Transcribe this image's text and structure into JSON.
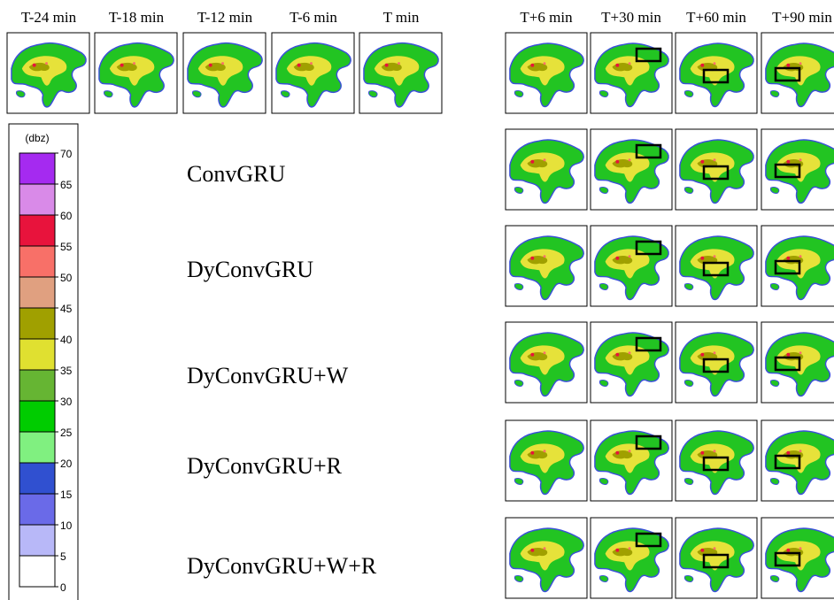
{
  "input_labels": [
    "T-24 min",
    "T-18 min",
    "T-12 min",
    "T-6 min",
    "T min"
  ],
  "output_labels": [
    "T+6 min",
    "T+30 min",
    "T+60 min",
    "T+90 min"
  ],
  "models": [
    "ConvGRU",
    "DyConvGRU",
    "DyConvGRU+W",
    "DyConvGRU+R",
    "DyConvGRU+W+R"
  ],
  "colorbar": {
    "label": "(dbz)",
    "ticks": [
      0,
      5,
      10,
      15,
      20,
      25,
      30,
      35,
      40,
      45,
      50,
      55,
      60,
      65,
      70
    ],
    "colors": [
      "#ffffff",
      "#b8b8f8",
      "#6a6ae8",
      "#3050d0",
      "#80f080",
      "#00cc00",
      "#66b533",
      "#e0e030",
      "#a0a000",
      "#e0a080",
      "#f87068",
      "#e8133c",
      "#d98ae8",
      "#a52af0"
    ]
  }
}
